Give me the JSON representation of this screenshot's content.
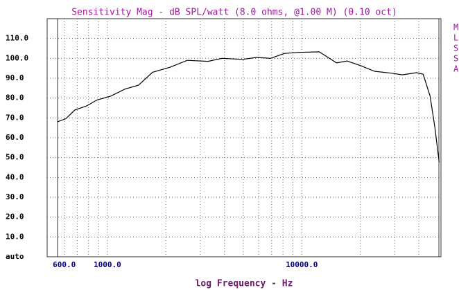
{
  "chart_data": {
    "type": "line",
    "title": "Sensitivity Mag - dB SPL/watt (8.0 ohms, @1.00 M) (0.10 oct)",
    "x_label": "log Frequency - Hz",
    "log_x": true,
    "grid": true,
    "xlim": [
      490,
      52000
    ],
    "ylim": [
      0,
      120
    ],
    "xticks": [
      {
        "value": 600,
        "label": "600.0"
      },
      {
        "value": 1000,
        "label": "1000.0"
      },
      {
        "value": 10000,
        "label": "10000.0"
      }
    ],
    "xgrid": [
      600,
      700,
      800,
      900,
      1000,
      2000,
      3000,
      4000,
      5000,
      6000,
      7000,
      8000,
      9000,
      10000,
      20000,
      30000,
      40000
    ],
    "yticks": [
      {
        "value": 0,
        "label": "auto"
      },
      {
        "value": 10,
        "label": "10.0"
      },
      {
        "value": 20,
        "label": "20.0"
      },
      {
        "value": 30,
        "label": "30.0"
      },
      {
        "value": 40,
        "label": "40.0"
      },
      {
        "value": 50,
        "label": "50.0"
      },
      {
        "value": 60,
        "label": "60.0"
      },
      {
        "value": 70,
        "label": "70.0"
      },
      {
        "value": 80,
        "label": "80.0"
      },
      {
        "value": 90,
        "label": "90.0"
      },
      {
        "value": 100,
        "label": "100.0"
      },
      {
        "value": 110,
        "label": "110.0"
      }
    ],
    "legend_fragments": [
      "M",
      "L",
      "S",
      "S",
      "A"
    ],
    "series": [
      {
        "name": "Sensitivity Mag",
        "color": "#000000",
        "x": [
          553,
          611,
          680,
          781,
          884,
          1042,
          1228,
          1448,
          1707,
          2098,
          2575,
          3297,
          3884,
          4970,
          5860,
          6910,
          8150,
          9610,
          12300,
          15100,
          17100,
          20100,
          23700,
          29100,
          32900,
          38900,
          42100,
          45700,
          48400,
          50900
        ],
        "values": [
          68,
          69.6,
          74,
          76,
          79,
          81,
          84.5,
          86.5,
          93,
          95.5,
          99,
          98.5,
          100,
          99.5,
          100.5,
          100,
          102.5,
          103,
          103.3,
          97.7,
          98.7,
          96.3,
          93.5,
          92.5,
          91.7,
          92.8,
          92,
          81,
          65,
          47.6
        ]
      }
    ]
  }
}
